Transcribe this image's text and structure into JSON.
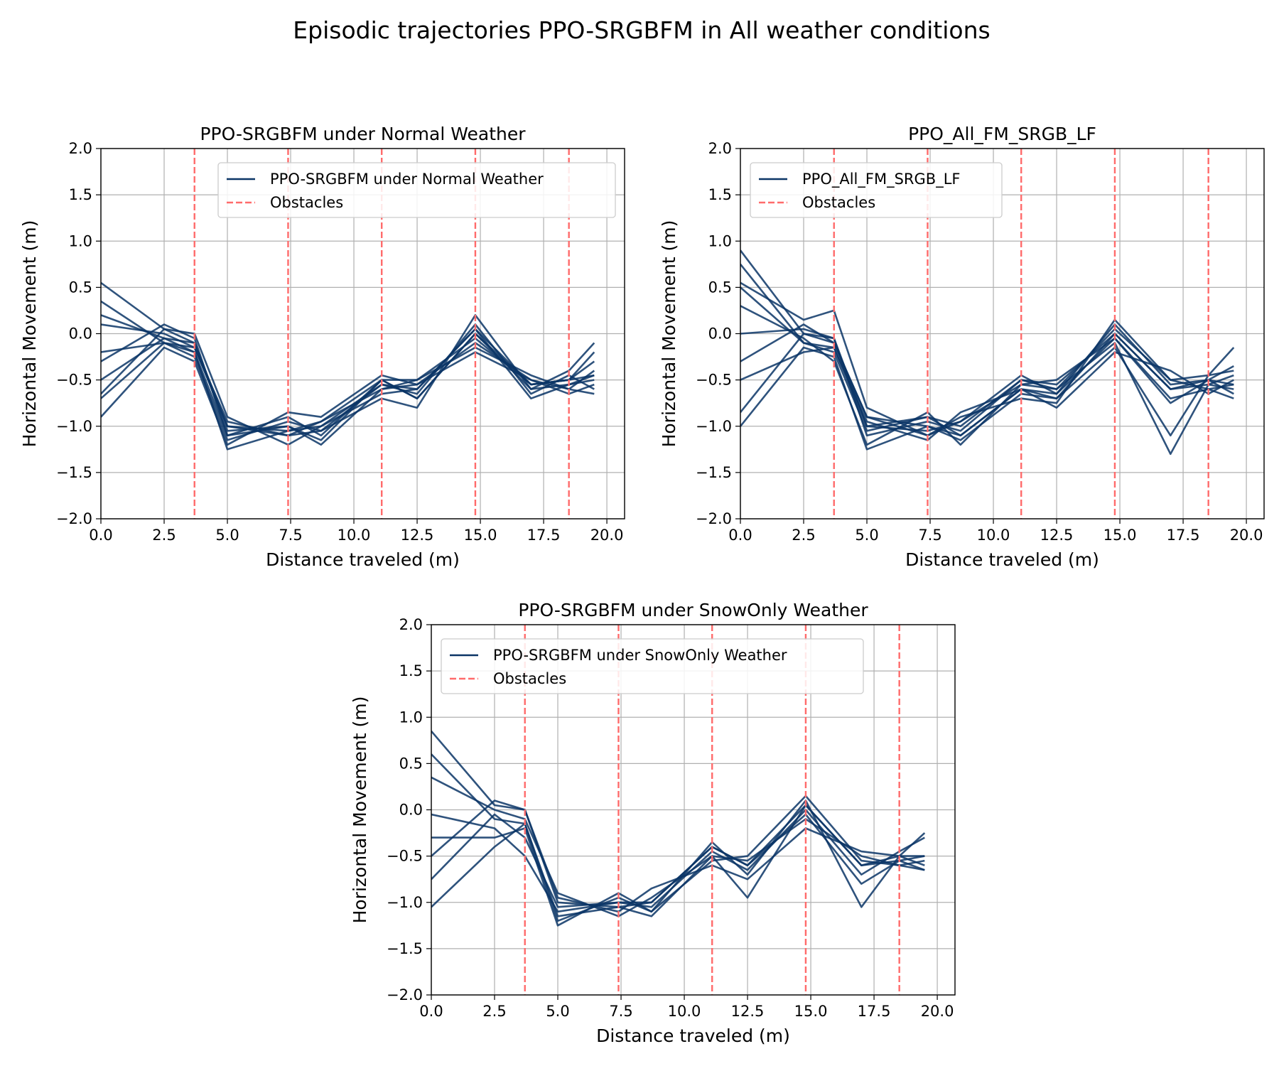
{
  "figure": {
    "suptitle": "Episodic trajectories PPO-SRGBFM  in All weather conditions"
  },
  "colors": {
    "trajectory": "#0b3566",
    "obstacle": "#ff6b6b",
    "grid": "#b0b0b0",
    "axis": "#000000"
  },
  "chart_data": [
    {
      "type": "line",
      "title": "PPO-SRGBFM  under Normal Weather",
      "xlabel": "Distance traveled (m)",
      "ylabel": "Horizontal Movement (m)",
      "xlim": [
        0,
        20.7
      ],
      "ylim": [
        -2.0,
        2.0
      ],
      "xticks": [
        "0.0",
        "2.5",
        "5.0",
        "7.5",
        "10.0",
        "12.5",
        "15.0",
        "17.5",
        "20.0"
      ],
      "yticks": [
        "−2.0",
        "−1.5",
        "−1.0",
        "−0.5",
        "0.0",
        "0.5",
        "1.0",
        "1.5",
        "2.0"
      ],
      "grid": true,
      "legend": {
        "placement": "upper center",
        "entries": [
          "PPO-SRGBFM  under Normal Weather",
          "Obstacles"
        ]
      },
      "obstacles_x": [
        3.7,
        7.4,
        11.1,
        14.8,
        18.5
      ],
      "x": [
        0.0,
        2.5,
        3.7,
        5.0,
        7.4,
        8.7,
        11.1,
        12.5,
        14.8,
        17.0,
        18.5,
        19.5
      ],
      "series": [
        {
          "values": [
            0.55,
            0.05,
            -0.1,
            -1.0,
            -1.05,
            -1.0,
            -0.55,
            -0.6,
            0.05,
            -0.55,
            -0.5,
            -0.3
          ]
        },
        {
          "values": [
            0.35,
            -0.1,
            -0.2,
            -1.1,
            -0.9,
            -1.1,
            -0.5,
            -0.7,
            0.0,
            -0.6,
            -0.55,
            -0.5
          ]
        },
        {
          "values": [
            0.1,
            0.0,
            -0.15,
            -0.95,
            -1.1,
            -0.95,
            -0.6,
            -0.55,
            -0.1,
            -0.5,
            -0.6,
            -0.4
          ]
        },
        {
          "values": [
            -0.2,
            -0.1,
            -0.25,
            -1.15,
            -0.95,
            -1.05,
            -0.55,
            -0.65,
            0.1,
            -0.65,
            -0.45,
            -0.6
          ]
        },
        {
          "values": [
            -0.5,
            -0.05,
            -0.1,
            -1.05,
            -1.0,
            -1.15,
            -0.5,
            -0.5,
            -0.05,
            -0.55,
            -0.5,
            -0.2
          ]
        },
        {
          "values": [
            -0.65,
            0.05,
            0.0,
            -0.9,
            -1.2,
            -1.0,
            -0.65,
            -0.6,
            0.05,
            -0.7,
            -0.55,
            -0.45
          ]
        },
        {
          "values": [
            -0.9,
            -0.15,
            -0.3,
            -1.2,
            -0.85,
            -0.9,
            -0.45,
            -0.55,
            -0.2,
            -0.5,
            -0.65,
            -0.55
          ]
        },
        {
          "values": [
            -0.7,
            -0.1,
            -0.15,
            -1.0,
            -1.1,
            -1.05,
            -0.7,
            -0.8,
            0.2,
            -0.6,
            -0.4,
            -0.1
          ]
        },
        {
          "values": [
            -0.3,
            0.1,
            -0.05,
            -1.1,
            -1.0,
            -1.2,
            -0.6,
            -0.5,
            -0.15,
            -0.45,
            -0.6,
            -0.65
          ]
        },
        {
          "values": [
            0.2,
            -0.05,
            -0.2,
            -1.25,
            -1.05,
            -0.95,
            -0.5,
            -0.7,
            0.0,
            -0.55,
            -0.5,
            -0.45
          ]
        }
      ]
    },
    {
      "type": "line",
      "title": "PPO_All_FM_SRGB_LF",
      "xlabel": "Distance traveled (m)",
      "ylabel": "Horizontal Movement (m)",
      "xlim": [
        0,
        20.7
      ],
      "ylim": [
        -2.0,
        2.0
      ],
      "xticks": [
        "0.0",
        "2.5",
        "5.0",
        "7.5",
        "10.0",
        "12.5",
        "15.0",
        "17.5",
        "20.0"
      ],
      "yticks": [
        "−2.0",
        "−1.5",
        "−1.0",
        "−0.5",
        "0.0",
        "0.5",
        "1.0",
        "1.5",
        "2.0"
      ],
      "grid": true,
      "legend": {
        "placement": "upper left",
        "entries": [
          "PPO_All_FM_SRGB_LF",
          "Obstacles"
        ]
      },
      "obstacles_x": [
        3.7,
        7.4,
        11.1,
        14.8,
        18.5
      ],
      "x": [
        0.0,
        2.5,
        3.7,
        5.0,
        7.4,
        8.7,
        11.1,
        12.5,
        14.8,
        17.0,
        18.5,
        19.5
      ],
      "series": [
        {
          "values": [
            0.9,
            0.0,
            -0.1,
            -0.9,
            -1.0,
            -1.1,
            -0.6,
            -0.7,
            0.0,
            -0.6,
            -0.5,
            -0.55
          ]
        },
        {
          "values": [
            0.75,
            -0.1,
            -0.2,
            -1.05,
            -0.9,
            -1.0,
            -0.5,
            -0.6,
            -0.1,
            -1.3,
            -0.55,
            -0.45
          ]
        },
        {
          "values": [
            0.55,
            0.15,
            0.25,
            -0.8,
            -1.1,
            -0.9,
            -0.7,
            -0.75,
            0.15,
            -0.5,
            -0.45,
            -0.15
          ]
        },
        {
          "values": [
            0.3,
            -0.05,
            -0.3,
            -1.2,
            -0.85,
            -1.2,
            -0.55,
            -0.5,
            -0.05,
            -0.7,
            -0.6,
            -0.7
          ]
        },
        {
          "values": [
            0.0,
            0.05,
            -0.05,
            -1.0,
            -1.05,
            -0.95,
            -0.45,
            -0.65,
            0.1,
            -0.55,
            -0.5,
            -0.35
          ]
        },
        {
          "values": [
            -0.5,
            -0.2,
            -0.15,
            -0.95,
            -1.15,
            -0.85,
            -0.6,
            -0.8,
            -0.2,
            -0.4,
            -0.65,
            -0.5
          ]
        },
        {
          "values": [
            -0.85,
            0.0,
            -0.05,
            -1.1,
            -0.95,
            -1.05,
            -0.5,
            -0.55,
            0.0,
            -0.6,
            -0.55,
            -0.6
          ]
        },
        {
          "values": [
            -1.0,
            -0.15,
            -0.25,
            -1.25,
            -1.0,
            -1.15,
            -0.65,
            -0.7,
            -0.15,
            -1.1,
            -0.45,
            -0.4
          ]
        },
        {
          "values": [
            -0.3,
            0.1,
            -0.1,
            -0.9,
            -1.1,
            -0.95,
            -0.55,
            -0.6,
            0.05,
            -0.5,
            -0.6,
            -0.55
          ]
        },
        {
          "values": [
            0.5,
            -0.1,
            -0.15,
            -1.0,
            -0.9,
            -1.1,
            -0.6,
            -0.65,
            -0.05,
            -0.75,
            -0.5,
            -0.65
          ]
        }
      ]
    },
    {
      "type": "line",
      "title": "PPO-SRGBFM  under SnowOnly Weather",
      "xlabel": "Distance traveled (m)",
      "ylabel": "Horizontal Movement (m)",
      "xlim": [
        0,
        20.7
      ],
      "ylim": [
        -2.0,
        2.0
      ],
      "xticks": [
        "0.0",
        "2.5",
        "5.0",
        "7.5",
        "10.0",
        "12.5",
        "15.0",
        "17.5",
        "20.0"
      ],
      "yticks": [
        "−2.0",
        "−1.5",
        "−1.0",
        "−0.5",
        "0.0",
        "0.5",
        "1.0",
        "1.5",
        "2.0"
      ],
      "grid": true,
      "legend": {
        "placement": "upper left",
        "entries": [
          "PPO-SRGBFM  under SnowOnly Weather",
          "Obstacles"
        ]
      },
      "obstacles_x": [
        3.7,
        7.4,
        11.1,
        14.8,
        18.5
      ],
      "x": [
        0.0,
        2.5,
        3.7,
        5.0,
        7.4,
        8.7,
        11.1,
        12.5,
        14.8,
        17.0,
        18.5,
        19.5
      ],
      "series": [
        {
          "values": [
            0.85,
            0.05,
            0.0,
            -1.0,
            -1.05,
            -1.0,
            -0.4,
            -0.6,
            0.05,
            -0.6,
            -0.55,
            -0.5
          ]
        },
        {
          "values": [
            0.6,
            -0.1,
            -0.15,
            -1.2,
            -0.95,
            -1.1,
            -0.35,
            -0.7,
            0.1,
            -1.05,
            -0.5,
            -0.25
          ]
        },
        {
          "values": [
            0.35,
            0.0,
            -0.1,
            -0.9,
            -1.15,
            -0.95,
            -0.5,
            -0.55,
            -0.1,
            -0.5,
            -0.6,
            -0.65
          ]
        },
        {
          "values": [
            -0.05,
            -0.2,
            -0.5,
            -1.1,
            -1.0,
            -1.05,
            -0.45,
            -0.65,
            0.0,
            -0.7,
            -0.45,
            -0.3
          ]
        },
        {
          "values": [
            -0.3,
            -0.3,
            -0.2,
            -1.25,
            -0.9,
            -1.1,
            -0.55,
            -0.5,
            0.15,
            -0.55,
            -0.6,
            -0.55
          ]
        },
        {
          "values": [
            -0.5,
            0.1,
            0.0,
            -0.95,
            -1.1,
            -0.85,
            -0.6,
            -0.75,
            -0.2,
            -0.45,
            -0.5,
            -0.6
          ]
        },
        {
          "values": [
            -0.75,
            -0.05,
            -0.3,
            -1.05,
            -1.0,
            -1.0,
            -0.4,
            -0.6,
            -0.05,
            -0.8,
            -0.55,
            -0.65
          ]
        },
        {
          "values": [
            -1.05,
            -0.4,
            -0.15,
            -1.15,
            -1.05,
            -1.15,
            -0.5,
            -0.95,
            0.05,
            -0.6,
            -0.5,
            -0.5
          ]
        }
      ]
    }
  ]
}
